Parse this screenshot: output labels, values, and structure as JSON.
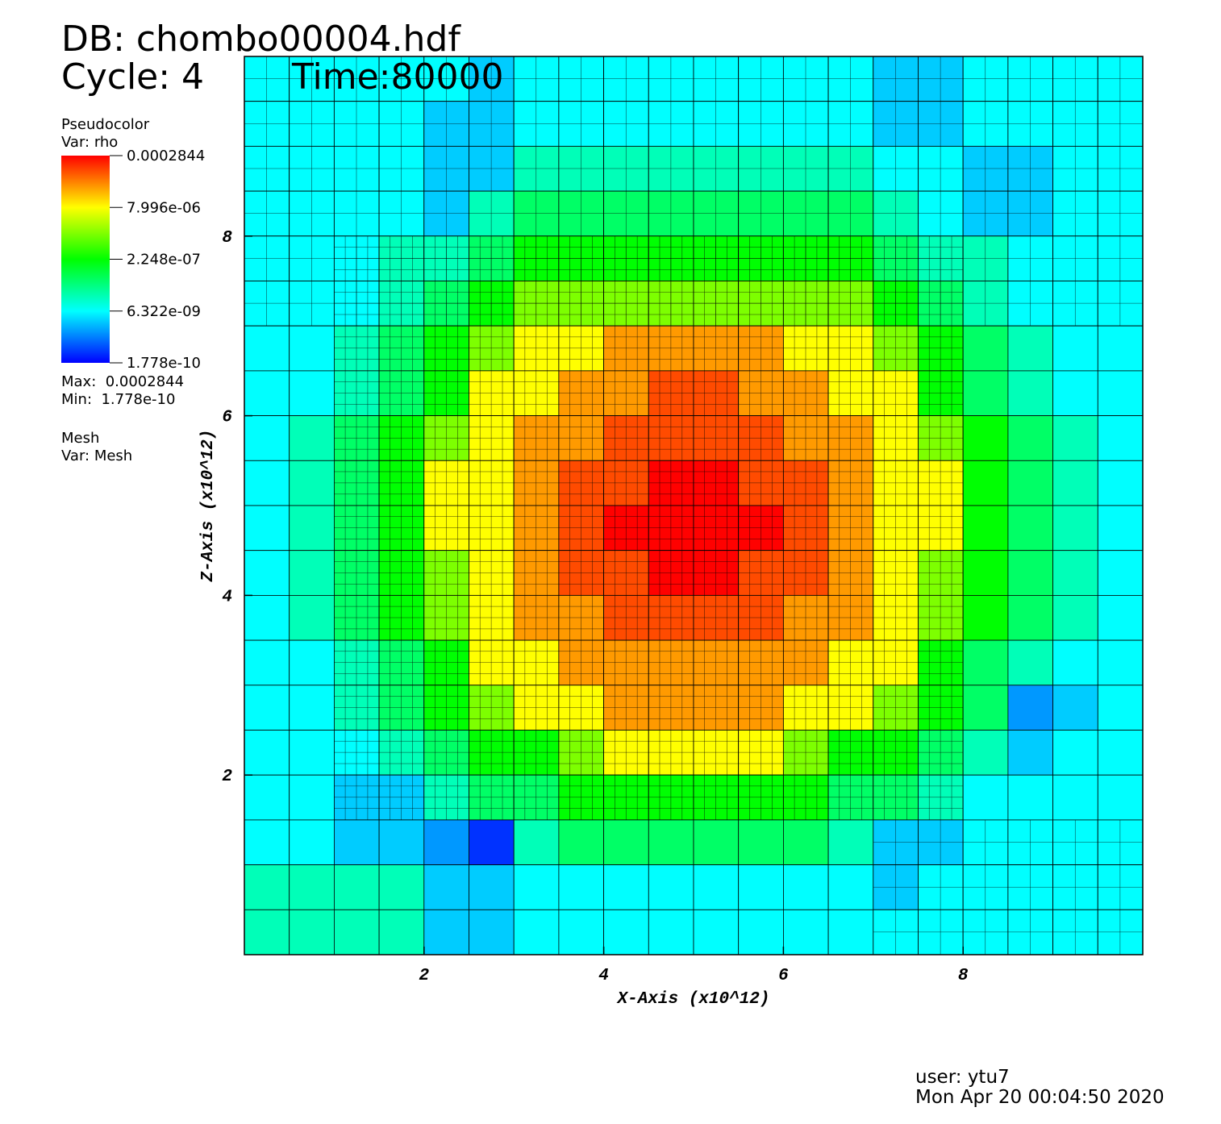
{
  "header": {
    "db": "DB: chombo00004.hdf",
    "cycle": "Cycle: 4",
    "time": "Time:80000"
  },
  "legend": {
    "plot": "Pseudocolor",
    "var": "Var: rho",
    "max": "Max:  0.0002844",
    "min": "Min:  1.778e-10",
    "mesh": "Mesh",
    "mesh_var": "Var: Mesh"
  },
  "footer": {
    "user": "user: ytu7",
    "date": "Mon Apr 20 00:04:50 2020"
  },
  "chart_data": {
    "type": "heatmap",
    "xlabel": "X-Axis (x10^12)",
    "ylabel": "Z-Axis (x10^12)",
    "xlim": [
      0,
      10
    ],
    "ylim": [
      0,
      10
    ],
    "xticks": [
      2,
      4,
      6,
      8
    ],
    "yticks": [
      2,
      4,
      6,
      8
    ],
    "xbins": [
      0,
      0.5,
      1,
      1.5,
      2,
      2.5,
      3,
      3.5,
      4,
      4.5,
      5,
      5.5,
      6,
      6.5,
      7,
      7.5,
      8,
      8.5,
      9,
      9.5,
      10
    ],
    "ybins": [
      10,
      9.5,
      9,
      8.5,
      8,
      7.5,
      7,
      6.5,
      6,
      5.5,
      5,
      4.5,
      4,
      3.5,
      3,
      2.5,
      2,
      1.5,
      1,
      0.5,
      0
    ],
    "colorbar": {
      "log": true,
      "lim": [
        1.778e-10,
        0.0002844
      ],
      "ticks": [
        0.0002844,
        {
          "value": 7.996e-06,
          "label": "7.996e-06"
        },
        {
          "value": 2.248e-07,
          "label": "2.248e-07"
        },
        {
          "value": 6.322e-09,
          "label": "6.322e-09"
        },
        1.778e-10
      ]
    },
    "values": [
      [
        6.3e-09,
        6.3e-09,
        6.3e-09,
        6.3e-09,
        6.3e-09,
        3.1e-09,
        6.3e-09,
        6.3e-09,
        6.3e-09,
        6.3e-09,
        6.3e-09,
        6.3e-09,
        6.3e-09,
        6.3e-09,
        3.1e-09,
        3.1e-09,
        6.3e-09,
        6.3e-09,
        6.3e-09,
        6.3e-09
      ],
      [
        6.3e-09,
        6.3e-09,
        6.3e-09,
        6.3e-09,
        3.1e-09,
        3.1e-09,
        6.3e-09,
        6.3e-09,
        6.3e-09,
        6.3e-09,
        6.3e-09,
        6.3e-09,
        6.3e-09,
        6.3e-09,
        3.1e-09,
        3.1e-09,
        6.3e-09,
        6.3e-09,
        6.3e-09,
        6.3e-09
      ],
      [
        6.3e-09,
        6.3e-09,
        6.3e-09,
        6.3e-09,
        3.1e-09,
        3.1e-09,
        1.7e-08,
        1.7e-08,
        1.7e-08,
        1.7e-08,
        1.7e-08,
        1.7e-08,
        1.7e-08,
        1.7e-08,
        6.3e-09,
        6.3e-09,
        3.1e-09,
        3.1e-09,
        6.3e-09,
        6.3e-09
      ],
      [
        6.3e-09,
        6.3e-09,
        6.3e-09,
        6.3e-09,
        3.1e-09,
        1.7e-08,
        5.4e-08,
        5.4e-08,
        5.4e-08,
        5.4e-08,
        5.4e-08,
        5.4e-08,
        5.4e-08,
        5.4e-08,
        1.7e-08,
        6.3e-09,
        3.1e-09,
        3.1e-09,
        6.3e-09,
        6.3e-09
      ],
      [
        6.3e-09,
        6.3e-09,
        6.3e-09,
        1.7e-08,
        1.7e-08,
        5.4e-08,
        2.2e-07,
        2.2e-07,
        2.2e-07,
        2.2e-07,
        2.2e-07,
        2.2e-07,
        2.2e-07,
        2.2e-07,
        5.4e-08,
        1.7e-08,
        1.7e-08,
        6.3e-09,
        6.3e-09,
        6.3e-09
      ],
      [
        6.3e-09,
        6.3e-09,
        6.3e-09,
        1.7e-08,
        5.4e-08,
        2.2e-07,
        1.3e-06,
        1.3e-06,
        1.3e-06,
        1.3e-06,
        1.3e-06,
        1.3e-06,
        1.3e-06,
        1.3e-06,
        2.2e-07,
        5.4e-08,
        1.7e-08,
        6.3e-09,
        6.3e-09,
        6.3e-09
      ],
      [
        6.3e-09,
        6.3e-09,
        1.7e-08,
        5.4e-08,
        2.2e-07,
        1.3e-06,
        8e-06,
        8e-06,
        3.3e-05,
        3.3e-05,
        3.3e-05,
        3.3e-05,
        8e-06,
        8e-06,
        1.3e-06,
        2.2e-07,
        5.4e-08,
        1.7e-08,
        6.3e-09,
        6.3e-09
      ],
      [
        6.3e-09,
        6.3e-09,
        1.7e-08,
        5.4e-08,
        2.2e-07,
        8e-06,
        8e-06,
        3.3e-05,
        3.3e-05,
        0.0001,
        0.0001,
        3.3e-05,
        3.3e-05,
        8e-06,
        8e-06,
        2.2e-07,
        5.4e-08,
        1.7e-08,
        6.3e-09,
        6.3e-09
      ],
      [
        6.3e-09,
        1.7e-08,
        5.4e-08,
        2.2e-07,
        1.3e-06,
        8e-06,
        3.3e-05,
        3.3e-05,
        0.0001,
        0.0001,
        0.0001,
        0.0001,
        3.3e-05,
        3.3e-05,
        8e-06,
        1.3e-06,
        2.2e-07,
        5.4e-08,
        1.7e-08,
        6.3e-09
      ],
      [
        6.3e-09,
        1.7e-08,
        5.4e-08,
        2.2e-07,
        8e-06,
        8e-06,
        3.3e-05,
        0.0001,
        0.0001,
        0.00028,
        0.00028,
        0.0001,
        0.0001,
        3.3e-05,
        8e-06,
        8e-06,
        2.2e-07,
        5.4e-08,
        1.7e-08,
        6.3e-09
      ],
      [
        6.3e-09,
        1.7e-08,
        5.4e-08,
        2.2e-07,
        8e-06,
        8e-06,
        3.3e-05,
        0.0001,
        0.00028,
        0.00028,
        0.00028,
        0.00028,
        0.0001,
        3.3e-05,
        8e-06,
        8e-06,
        2.2e-07,
        5.4e-08,
        1.7e-08,
        6.3e-09
      ],
      [
        6.3e-09,
        1.7e-08,
        5.4e-08,
        2.2e-07,
        1.3e-06,
        8e-06,
        3.3e-05,
        0.0001,
        0.0001,
        0.00028,
        0.00028,
        0.0001,
        0.0001,
        3.3e-05,
        8e-06,
        1.3e-06,
        2.2e-07,
        5.4e-08,
        1.7e-08,
        6.3e-09
      ],
      [
        6.3e-09,
        1.7e-08,
        5.4e-08,
        2.2e-07,
        1.3e-06,
        8e-06,
        3.3e-05,
        3.3e-05,
        0.0001,
        0.0001,
        0.0001,
        0.0001,
        3.3e-05,
        3.3e-05,
        8e-06,
        1.3e-06,
        2.2e-07,
        5.4e-08,
        1.7e-08,
        6.3e-09
      ],
      [
        6.3e-09,
        6.3e-09,
        1.7e-08,
        5.4e-08,
        2.2e-07,
        8e-06,
        8e-06,
        3.3e-05,
        3.3e-05,
        3.3e-05,
        3.3e-05,
        3.3e-05,
        3.3e-05,
        8e-06,
        8e-06,
        2.2e-07,
        5.4e-08,
        1.7e-08,
        6.3e-09,
        6.3e-09
      ],
      [
        6.3e-09,
        6.3e-09,
        1.7e-08,
        5.4e-08,
        2.2e-07,
        1.3e-06,
        8e-06,
        8e-06,
        3.3e-05,
        3.3e-05,
        3.3e-05,
        3.3e-05,
        8e-06,
        8e-06,
        1.3e-06,
        2.2e-07,
        5.4e-08,
        1.5e-09,
        3.1e-09,
        6.3e-09
      ],
      [
        6.3e-09,
        6.3e-09,
        6.3e-09,
        1.7e-08,
        5.4e-08,
        2.2e-07,
        2.2e-07,
        1.3e-06,
        8e-06,
        8e-06,
        8e-06,
        8e-06,
        1.3e-06,
        2.2e-07,
        2.2e-07,
        5.4e-08,
        1.7e-08,
        3.1e-09,
        6.3e-09,
        6.3e-09
      ],
      [
        6.3e-09,
        6.3e-09,
        3.1e-09,
        3.1e-09,
        1.7e-08,
        5.4e-08,
        5.4e-08,
        2.2e-07,
        2.2e-07,
        2.2e-07,
        2.2e-07,
        2.2e-07,
        2.2e-07,
        5.4e-08,
        5.4e-08,
        1.7e-08,
        6.3e-09,
        6.3e-09,
        6.3e-09,
        6.3e-09
      ],
      [
        6.3e-09,
        6.3e-09,
        3.1e-09,
        3.1e-09,
        1.5e-09,
        3.6e-10,
        1.7e-08,
        5.4e-08,
        5.4e-08,
        5.4e-08,
        5.4e-08,
        5.4e-08,
        5.4e-08,
        1.7e-08,
        3.1e-09,
        3.1e-09,
        6.3e-09,
        6.3e-09,
        6.3e-09,
        6.3e-09
      ],
      [
        1.7e-08,
        1.7e-08,
        1.7e-08,
        1.7e-08,
        3.1e-09,
        3.1e-09,
        6.3e-09,
        6.3e-09,
        6.3e-09,
        6.3e-09,
        6.3e-09,
        6.3e-09,
        6.3e-09,
        6.3e-09,
        3.1e-09,
        6.3e-09,
        6.3e-09,
        6.3e-09,
        6.3e-09,
        6.3e-09
      ],
      [
        1.7e-08,
        1.7e-08,
        1.7e-08,
        1.7e-08,
        3.1e-09,
        3.1e-09,
        6.3e-09,
        6.3e-09,
        6.3e-09,
        6.3e-09,
        6.3e-09,
        6.3e-09,
        6.3e-09,
        6.3e-09,
        6.3e-09,
        6.3e-09,
        6.3e-09,
        6.3e-09,
        6.3e-09,
        6.3e-09
      ]
    ]
  }
}
